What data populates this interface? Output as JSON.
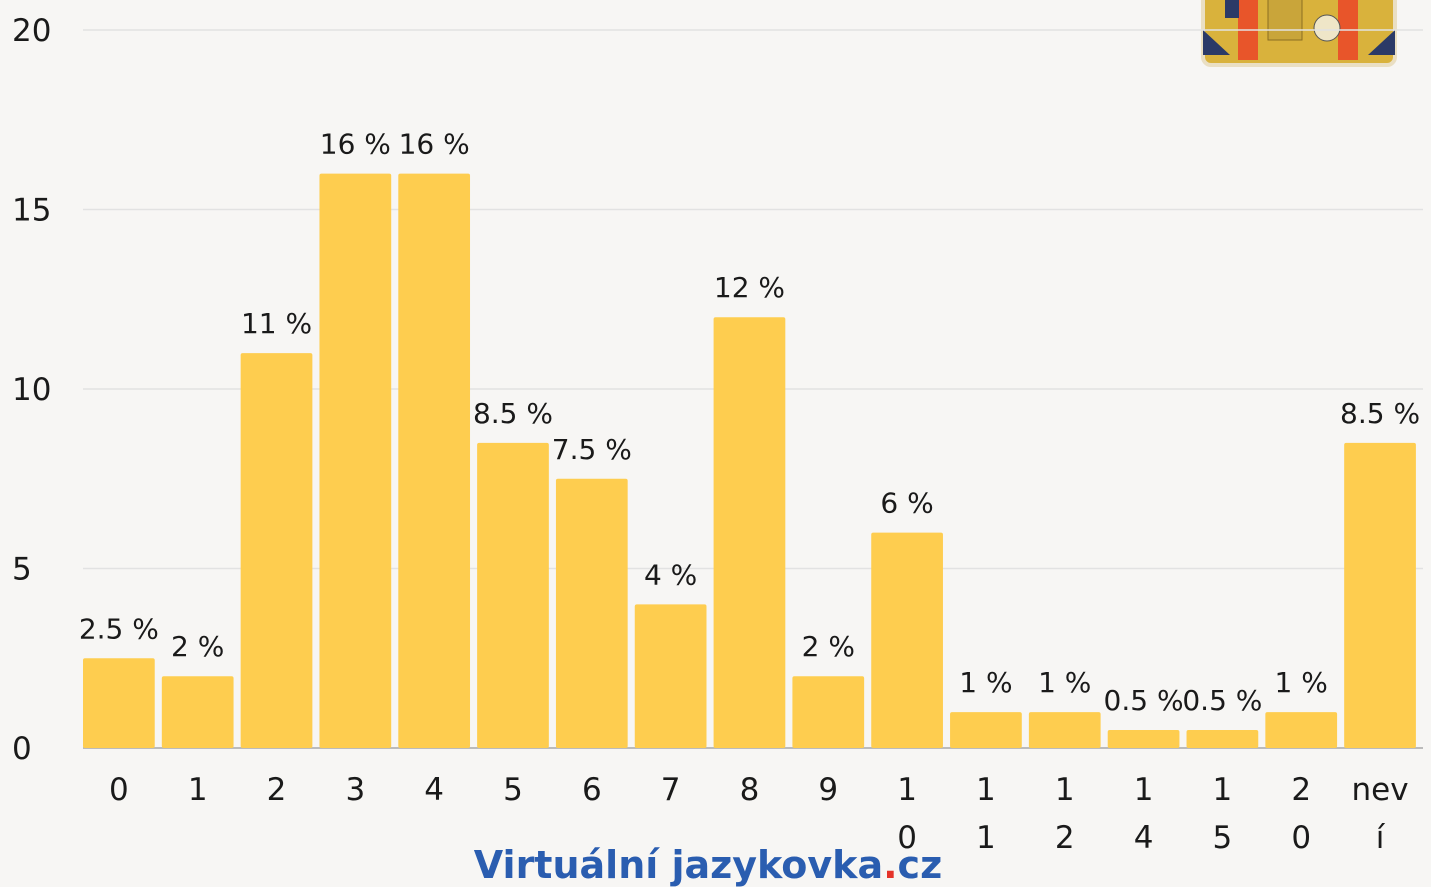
{
  "chart_data": {
    "type": "bar",
    "categories": [
      "0",
      "1",
      "2",
      "3",
      "4",
      "5",
      "6",
      "7",
      "8",
      "9",
      "10",
      "11",
      "12",
      "14",
      "15",
      "20",
      "neví"
    ],
    "values": [
      2.5,
      2,
      11,
      16,
      16,
      8.5,
      7.5,
      4,
      12,
      2,
      6,
      1,
      1,
      0.5,
      0.5,
      1,
      8.5
    ],
    "value_labels": [
      "2.5 %",
      "2 %",
      "11 %",
      "16 %",
      "16 %",
      "8.5 %",
      "7.5 %",
      "4 %",
      "12 %",
      "2 %",
      "6 %",
      "1 %",
      "1 %",
      "0.5 %",
      "0.5 %",
      "1 %",
      "8.5 %"
    ],
    "color": "#fecd4f",
    "ylim": [
      0,
      20
    ],
    "yticks": [
      0,
      5,
      10,
      15,
      20
    ],
    "grid": true,
    "watermark": [
      "Virtuální jazykovka",
      ".",
      "cz"
    ],
    "watermark_colors": [
      "#2a5db0",
      "#e5332a",
      "#2a5db0"
    ]
  }
}
